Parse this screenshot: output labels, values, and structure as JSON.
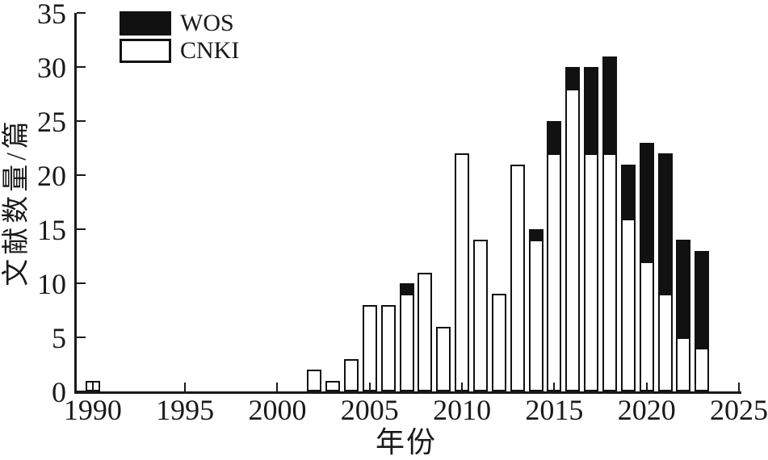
{
  "colors": {
    "background": "#ffffff",
    "axis": "#1a1a1a",
    "text": "#1a1a1a",
    "wos_fill": "#111111",
    "cnki_fill": "#ffffff",
    "bar_border": "#111111"
  },
  "chart_data": {
    "type": "bar",
    "stacked": true,
    "title": "",
    "xlabel": "年份",
    "ylabel": "文献数量/篇",
    "xlim": [
      1989,
      2025
    ],
    "ylim": [
      0,
      35
    ],
    "x_ticks": [
      1990,
      1995,
      2000,
      2005,
      2010,
      2015,
      2020,
      2025
    ],
    "y_ticks": [
      0,
      5,
      10,
      15,
      20,
      25,
      30,
      35
    ],
    "grid": false,
    "legend_position": "top-left",
    "stack_order_bottom_to_top": [
      "CNKI",
      "WOS"
    ],
    "categories": [
      1990,
      1991,
      1992,
      1993,
      1994,
      1995,
      1996,
      1997,
      1998,
      1999,
      2000,
      2001,
      2002,
      2003,
      2004,
      2005,
      2006,
      2007,
      2008,
      2009,
      2010,
      2011,
      2012,
      2013,
      2014,
      2015,
      2016,
      2017,
      2018,
      2019,
      2020,
      2021,
      2022,
      2023
    ],
    "series": [
      {
        "name": "WOS",
        "color": "#111111",
        "values": [
          0,
          0,
          0,
          0,
          0,
          0,
          0,
          0,
          0,
          0,
          0,
          0,
          0,
          0,
          0,
          0,
          0,
          1,
          0,
          0,
          0,
          0,
          0,
          0,
          1,
          3,
          2,
          8,
          9,
          5,
          11,
          13,
          9,
          9
        ]
      },
      {
        "name": "CNKI",
        "color": "#ffffff",
        "values": [
          1,
          0,
          0,
          0,
          0,
          0,
          0,
          0,
          0,
          0,
          0,
          0,
          2,
          1,
          3,
          8,
          8,
          9,
          11,
          6,
          22,
          14,
          9,
          21,
          14,
          22,
          28,
          22,
          22,
          16,
          12,
          9,
          5,
          4
        ]
      }
    ]
  }
}
